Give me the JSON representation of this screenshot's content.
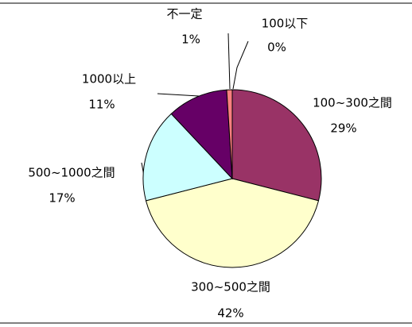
{
  "chart_data": {
    "type": "pie",
    "categories": [
      "100以下",
      "100~300之間",
      "300~500之間",
      "500~1000之間",
      "1000以上",
      "不一定"
    ],
    "values": [
      0,
      29,
      42,
      17,
      11,
      1
    ],
    "value_labels": [
      "0%",
      "29%",
      "42%",
      "17%",
      "11%",
      "1%"
    ],
    "colors": [
      "#9999ff",
      "#993366",
      "#ffffcc",
      "#ccffff",
      "#660066",
      "#ff8080"
    ]
  }
}
